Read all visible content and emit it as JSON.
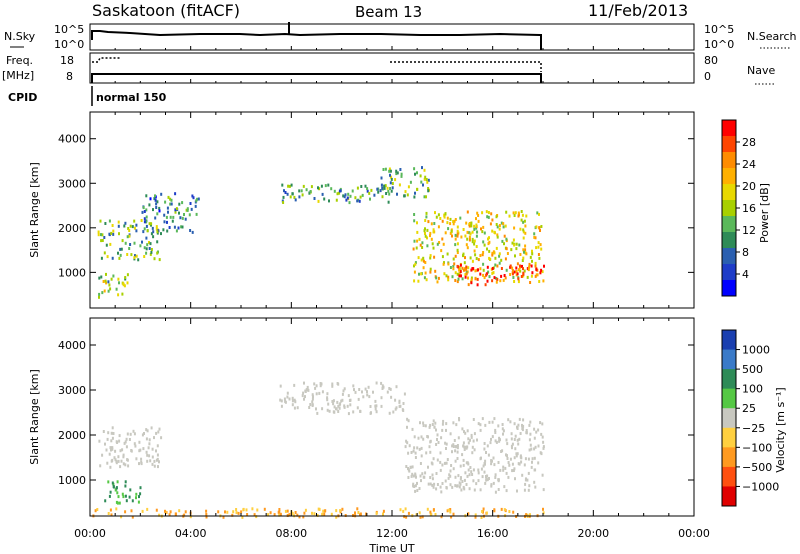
{
  "header": {
    "station": "Saskatoon (fitACF)",
    "beam": "Beam 13",
    "date": "11/Feb/2013"
  },
  "top_panels": {
    "nsky_label": "N.Sky",
    "nsky_ticks": [
      "10^5",
      "10^0"
    ],
    "nsky_right_ticks": [
      "10^5",
      "10^0"
    ],
    "nsearch_label": "N.Search",
    "freq_label_1": "Freq.",
    "freq_label_2": "[MHz]",
    "freq_ticks": [
      "18",
      "8"
    ],
    "nave_ticks": [
      "80",
      "0"
    ],
    "nave_label": "Nave",
    "cpid_label": "CPID",
    "cpid_value": "normal 150"
  },
  "colorbars": {
    "power": {
      "label": "Power [dB]",
      "ticks": [
        "28",
        "24",
        "20",
        "16",
        "12",
        "8",
        "4"
      ],
      "colors": [
        "#ff0000",
        "#ff4500",
        "#ff8c00",
        "#ffb000",
        "#e8d800",
        "#a8d000",
        "#5ab85a",
        "#2e8b57",
        "#2a5fb0",
        "#1e3cc8",
        "#0000ff"
      ]
    },
    "velocity": {
      "label": "Velocity [m s⁻¹]",
      "ticks": [
        "1000",
        "500",
        "100",
        "25",
        "−25",
        "−100",
        "−500",
        "−1000"
      ],
      "colors": [
        "#1a3fb0",
        "#3a7ac8",
        "#2e8b57",
        "#55c844",
        "#c8c8c0",
        "#ffd040",
        "#ff9a20",
        "#ff5010",
        "#e00000"
      ]
    }
  },
  "chart_data": [
    {
      "type": "heatmap",
      "title": "Power",
      "ylabel": "Slant Range [km]",
      "xlabel": "Time UT",
      "xlim": [
        "00:00",
        "24:00"
      ],
      "ylim": [
        200,
        4600
      ],
      "x_ticks": [
        "00:00",
        "04:00",
        "08:00",
        "12:00",
        "16:00",
        "20:00",
        "00:00"
      ],
      "y_ticks": [
        1000,
        2000,
        3000,
        4000
      ],
      "colorbar": "Power [dB]",
      "data_end_time": "18:00",
      "regions": [
        {
          "time": [
            0.3,
            2.8
          ],
          "range": [
            1300,
            2200
          ],
          "power_db": 12
        },
        {
          "time": [
            2.0,
            4.3
          ],
          "range": [
            1900,
            2800
          ],
          "power_db": 8
        },
        {
          "time": [
            0.3,
            1.5
          ],
          "range": [
            450,
            1000
          ],
          "power_db": 14
        },
        {
          "time": [
            7.5,
            12.0
          ],
          "range": [
            2600,
            3000
          ],
          "power_db": 10
        },
        {
          "time": [
            11.5,
            13.5
          ],
          "range": [
            2700,
            3400
          ],
          "power_db": 12
        },
        {
          "time": [
            12.8,
            18.0
          ],
          "range": [
            800,
            2400
          ],
          "power_db": 18
        },
        {
          "time": [
            14.5,
            18.0
          ],
          "range": [
            750,
            1200
          ],
          "power_db": 28
        }
      ]
    },
    {
      "type": "heatmap",
      "title": "Velocity",
      "ylabel": "Slant Range [km]",
      "xlabel": "Time UT",
      "xlim": [
        "00:00",
        "24:00"
      ],
      "ylim": [
        200,
        4600
      ],
      "x_ticks": [
        "00:00",
        "04:00",
        "08:00",
        "12:00",
        "16:00",
        "20:00",
        "00:00"
      ],
      "y_ticks": [
        1000,
        2000,
        3000,
        4000
      ],
      "colorbar": "Velocity [m s⁻¹]",
      "data_end_time": "18:00",
      "regions": [
        {
          "time": [
            0.3,
            2.8
          ],
          "range": [
            1300,
            2200
          ],
          "velocity": 0
        },
        {
          "time": [
            0.5,
            2.0
          ],
          "range": [
            500,
            1000
          ],
          "velocity": 100
        },
        {
          "time": [
            7.5,
            12.5
          ],
          "range": [
            2500,
            3200
          ],
          "velocity": 0
        },
        {
          "time": [
            12.5,
            18.0
          ],
          "range": [
            750,
            2400
          ],
          "velocity": 0
        },
        {
          "time": [
            0.0,
            18.0
          ],
          "range": [
            200,
            400
          ],
          "velocity": -100
        }
      ]
    }
  ]
}
